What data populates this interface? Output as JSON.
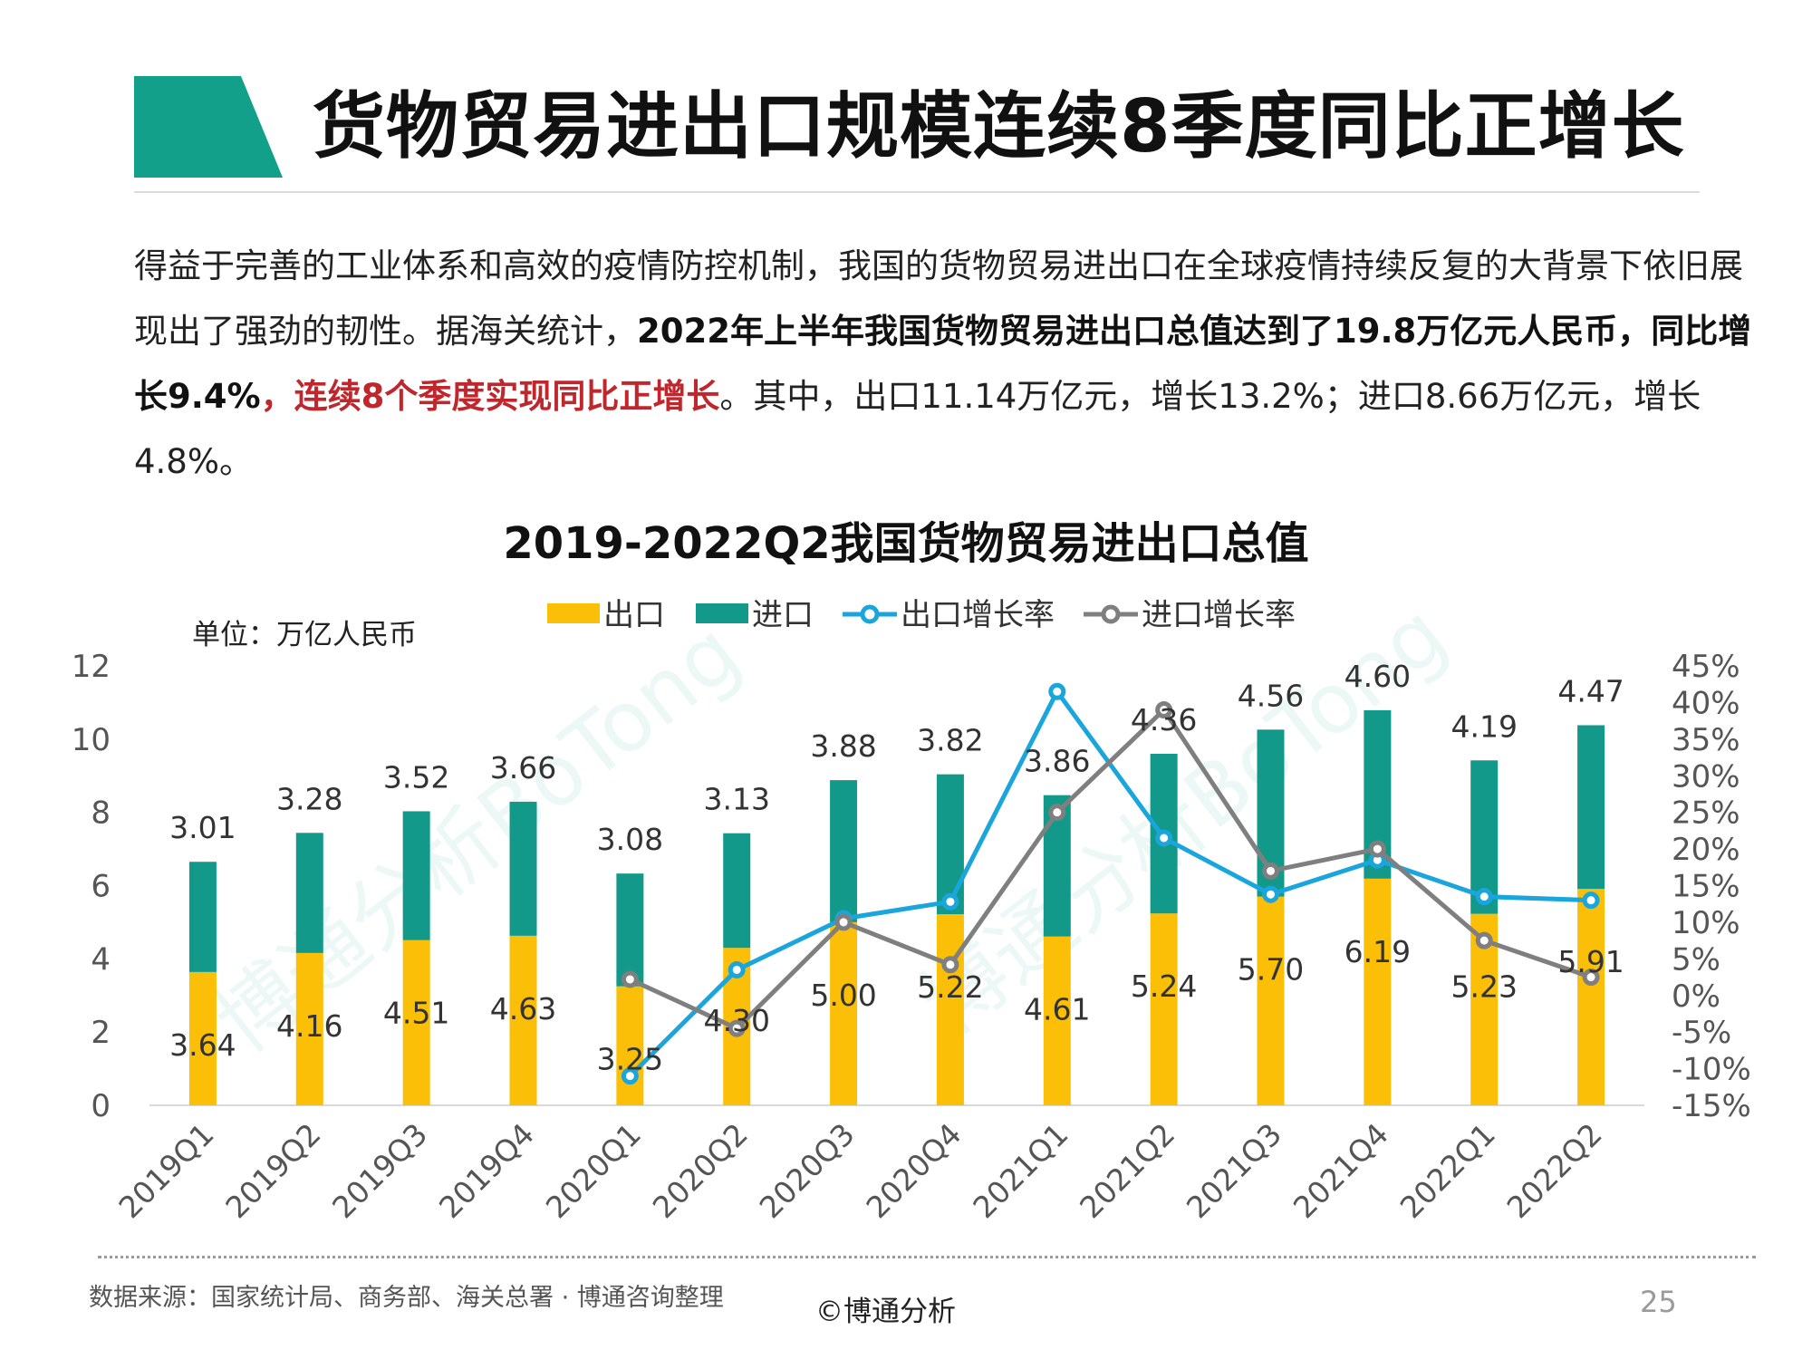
{
  "page": {
    "title": "货物贸易进出口规模连续8季度同比正增长",
    "intro": {
      "p1": "得益于完善的工业体系和高效的疫情防控机制，我国的货物贸易进出口在全球疫情持续反复的大背景下依旧展现出了强劲的韧性。据海关统计，",
      "p2_bold": "2022年上半年我国货物贸易进出口总值达到了19.8万亿元人民币，同比增长9.4%",
      "p3_red": "，连续8个季度实现同比正增长",
      "p4": "。其中，出口11.14万亿元，增长13.2%；进口8.66万亿元，增长4.8%。"
    },
    "source_note": "数据来源：国家统计局、商务部、海关总署 · 博通咨询整理",
    "copyright": "©博通分析",
    "page_number": "25",
    "watermark": "博通分析BoTong"
  },
  "colors": {
    "accent": "#13a08a",
    "export": "#fbbf07",
    "import": "#12998a",
    "export_growth": "#1aa6dc",
    "import_growth": "#7f7f7f",
    "highlight_red": "#c0272d"
  },
  "chart_data": {
    "type": "bar",
    "stacked": true,
    "title": "2019-2022Q2我国货物贸易进出口总值",
    "unit_label": "单位：万亿人民币",
    "categories": [
      "2019Q1",
      "2019Q2",
      "2019Q3",
      "2019Q4",
      "2020Q1",
      "2020Q2",
      "2020Q3",
      "2020Q4",
      "2021Q1",
      "2021Q2",
      "2021Q3",
      "2021Q4",
      "2022Q1",
      "2022Q2"
    ],
    "series": [
      {
        "name": "出口",
        "kind": "bar",
        "axis": "left",
        "values": [
          3.64,
          4.16,
          4.51,
          4.63,
          3.25,
          4.3,
          5.0,
          5.22,
          4.61,
          5.24,
          5.7,
          6.19,
          5.23,
          5.91
        ],
        "labels": [
          "3.64",
          "4.16",
          "4.51",
          "4.63",
          "3.25",
          "4.30",
          "5.00",
          "5.22",
          "4.61",
          "5.24",
          "5.70",
          "6.19",
          "5.23",
          "5.91"
        ]
      },
      {
        "name": "进口",
        "kind": "bar",
        "axis": "left",
        "values": [
          3.01,
          3.28,
          3.52,
          3.66,
          3.08,
          3.13,
          3.88,
          3.82,
          3.86,
          4.36,
          4.56,
          4.6,
          4.19,
          4.47
        ],
        "labels": [
          "3.01",
          "3.28",
          "3.52",
          "3.66",
          "3.08",
          "3.13",
          "3.88",
          "3.82",
          "3.86",
          "4.36",
          "4.56",
          "4.60",
          "4.19",
          "4.47"
        ]
      },
      {
        "name": "出口增长率",
        "kind": "line",
        "axis": "right",
        "values": [
          null,
          null,
          null,
          null,
          -11,
          3.5,
          10.5,
          12.8,
          41.5,
          21.5,
          13.8,
          18.5,
          13.5,
          13.0
        ]
      },
      {
        "name": "进口增长率",
        "kind": "line",
        "axis": "right",
        "values": [
          null,
          null,
          null,
          null,
          2.2,
          -4.5,
          10.0,
          4.2,
          25.0,
          39.0,
          17.0,
          20.0,
          7.5,
          2.5
        ]
      }
    ],
    "y_left": {
      "min": 0,
      "max": 12,
      "ticks": [
        "0",
        "2",
        "4",
        "6",
        "8",
        "10",
        "12"
      ]
    },
    "y_right": {
      "min": -15,
      "max": 45,
      "ticks": [
        "-15%",
        "-10%",
        "-5%",
        "0%",
        "5%",
        "10%",
        "15%",
        "20%",
        "25%",
        "30%",
        "35%",
        "40%",
        "45%"
      ]
    },
    "legend_position": "top",
    "grid": false
  }
}
